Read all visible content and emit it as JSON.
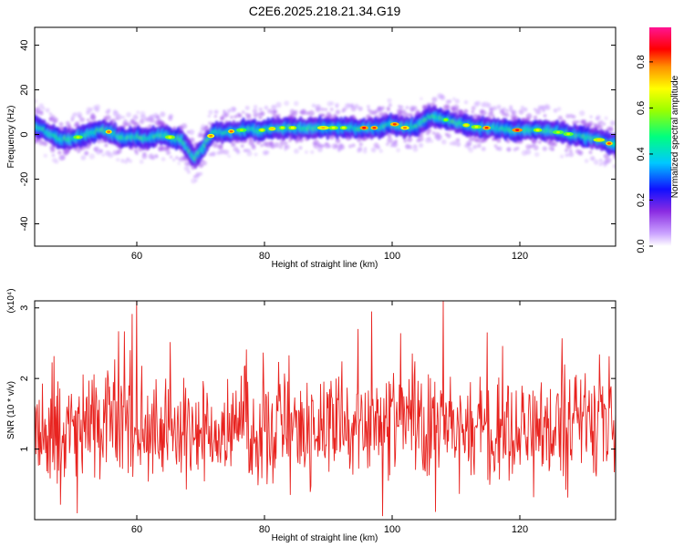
{
  "title": "C2E6.2025.218.21.34.G19",
  "colors": {
    "snr_line": "#e8231f",
    "colormap": [
      "#ffffff",
      "#8a2be2",
      "#0000ff",
      "#00c8ff",
      "#00ff7f",
      "#ffff00",
      "#ff7f00",
      "#ff0000",
      "#ff1493"
    ]
  },
  "chart_data": [
    {
      "type": "heatmap",
      "title": "C2E6.2025.218.21.34.G19",
      "xlabel": "Height of straight line (km)",
      "ylabel": "Frequency (Hz)",
      "xlim": [
        44,
        135
      ],
      "ylim": [
        -50,
        48
      ],
      "xticks": [
        60,
        80,
        100,
        120
      ],
      "yticks": [
        -40,
        -20,
        0,
        20,
        40
      ],
      "colorbar": {
        "label": "Normalized spectral amplitude",
        "range": [
          0.0,
          0.95
        ],
        "ticks": [
          "0.0",
          "0.2",
          "0.4",
          "0.6",
          "0.8"
        ]
      },
      "ridge": {
        "x": [
          44,
          46,
          48,
          50,
          52,
          54,
          56,
          58,
          60,
          62,
          64,
          66,
          67,
          68,
          69,
          70,
          71,
          72,
          74,
          76,
          78,
          80,
          82,
          84,
          86,
          88,
          90,
          92,
          94,
          96,
          98,
          100,
          102,
          104,
          106,
          108,
          110,
          112,
          114,
          116,
          118,
          120,
          122,
          124,
          126,
          128,
          130,
          132,
          134,
          135
        ],
        "freq": [
          4,
          1,
          -2,
          -2,
          0,
          2,
          1,
          -2,
          -1,
          -2,
          0,
          -2,
          -2,
          -6,
          -11,
          -8,
          -3,
          1,
          1,
          2,
          2,
          2,
          3,
          3,
          3,
          3,
          3,
          3,
          3,
          3,
          3,
          5,
          3,
          4,
          8,
          7,
          5,
          4,
          3,
          3,
          2,
          2,
          2,
          2,
          1,
          0,
          -1,
          -2,
          -4,
          -4
        ]
      }
    },
    {
      "type": "line",
      "xlabel": "Height of straight line (km)",
      "ylabel": "SNR (10 * v/v)",
      "y_multiplier": "(x10⁴)",
      "xlim": [
        44,
        135
      ],
      "ylim": [
        0,
        3.1
      ],
      "xticks": [
        60,
        80,
        100,
        120
      ],
      "yticks": [
        1,
        2,
        3
      ],
      "series": [
        {
          "mean": 1.3,
          "min": 0.05,
          "max": 3.1,
          "peaks": [
            {
              "x": 60,
              "y": 3.1
            },
            {
              "x": 96.8,
              "y": 2.95
            },
            {
              "x": 108,
              "y": 3.1
            },
            {
              "x": 98.5,
              "y": 0.05
            }
          ]
        }
      ]
    }
  ]
}
